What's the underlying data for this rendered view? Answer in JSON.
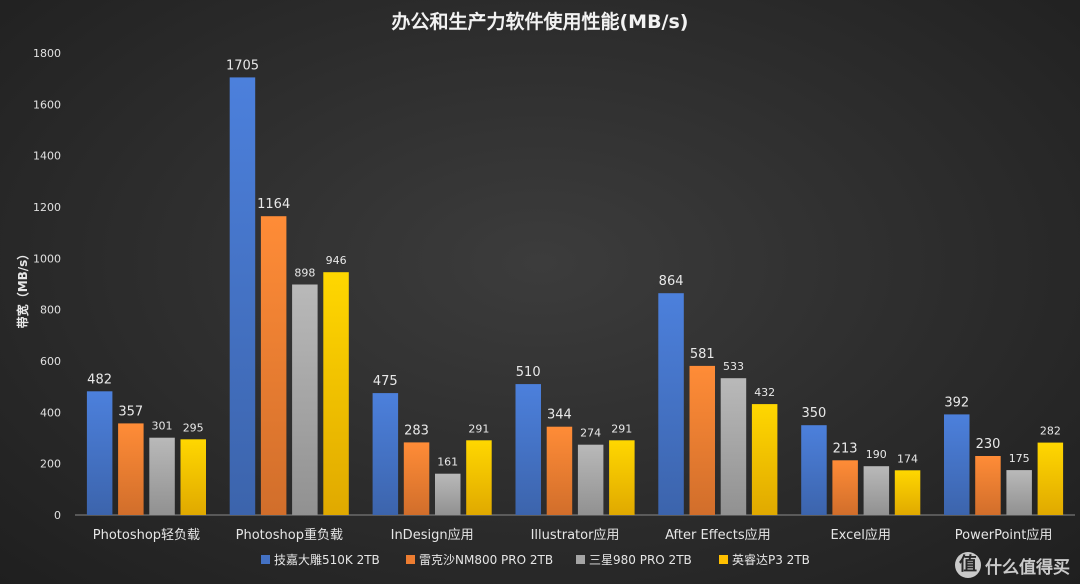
{
  "chart_data": {
    "type": "bar",
    "title": "办公和生产力软件使用性能(MB/s)",
    "ylabel": "带宽（MB/s）",
    "xlabel": "",
    "ylim": [
      0,
      1800
    ],
    "yticks": [
      0,
      200,
      400,
      600,
      800,
      1000,
      1200,
      1400,
      1600,
      1800
    ],
    "grid": false,
    "legend_position": "bottom",
    "categories": [
      "Photoshop轻负载",
      "Photoshop重负载",
      "InDesign应用",
      "Illustrator应用",
      "After Effects应用",
      "Excel应用",
      "PowerPoint应用"
    ],
    "series": [
      {
        "name": "技嘉大雕510K 2TB",
        "color": "#4472C4",
        "values": [
          482,
          1705,
          475,
          510,
          864,
          350,
          392
        ]
      },
      {
        "name": "雷克沙NM800 PRO 2TB",
        "color": "#ED7D31",
        "values": [
          357,
          1164,
          283,
          344,
          581,
          213,
          230
        ]
      },
      {
        "name": "三星980 PRO 2TB",
        "color": "#A5A5A5",
        "values": [
          301,
          898,
          161,
          274,
          533,
          190,
          175
        ]
      },
      {
        "name": "英睿达P3 2TB",
        "color": "#FFC000",
        "values": [
          295,
          946,
          291,
          291,
          432,
          174,
          282
        ]
      }
    ]
  },
  "watermark": {
    "logo_glyph": "值",
    "text": "什么值得买"
  }
}
